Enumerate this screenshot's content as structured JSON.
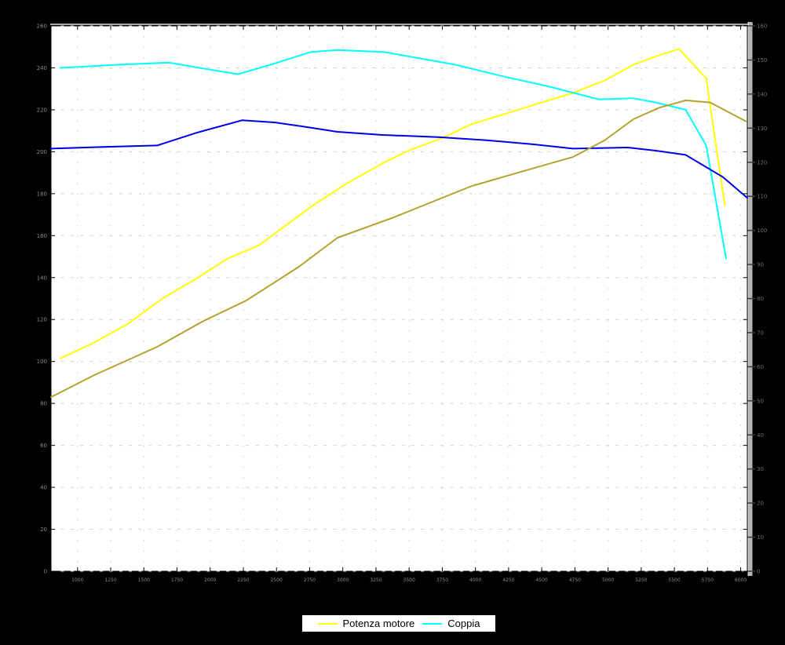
{
  "window": {
    "background": "#000000",
    "plot_background": "#ffffff",
    "grid_color": "#c8c8c8",
    "tick_label_color": "#8a8a8a",
    "title": ""
  },
  "chart_data": {
    "type": "line",
    "title": "",
    "xlabel": "",
    "ylabel": "",
    "grid": true,
    "legend_position": "bottom-center-outside",
    "x_axis": {
      "min": 800,
      "max": 6050,
      "ticks": [
        1000,
        1250,
        1500,
        1750,
        2000,
        2250,
        2500,
        2750,
        3000,
        3250,
        3500,
        3750,
        4000,
        4250,
        4500,
        4750,
        5000,
        5250,
        5500,
        5750,
        6000
      ]
    },
    "y_axis_left": {
      "min": 0,
      "max": 260,
      "ticks": [
        0,
        20,
        40,
        60,
        80,
        100,
        120,
        140,
        160,
        180,
        200,
        220,
        240,
        260
      ]
    },
    "y_axis_right": {
      "min": 0,
      "max": 160,
      "ticks": [
        0,
        10,
        20,
        30,
        40,
        50,
        60,
        70,
        80,
        90,
        100,
        110,
        120,
        130,
        140,
        150,
        160
      ]
    },
    "series": [
      {
        "name": "Potenza motore",
        "color": "#ffff00",
        "in_legend": true,
        "points": [
          [
            870,
            101.5
          ],
          [
            1125,
            109
          ],
          [
            1380,
            118
          ],
          [
            1640,
            130
          ],
          [
            1895,
            139.5
          ],
          [
            2130,
            149
          ],
          [
            2370,
            155.5
          ],
          [
            2765,
            174
          ],
          [
            3020,
            184.5
          ],
          [
            3315,
            195
          ],
          [
            3495,
            200.5
          ],
          [
            3750,
            206.5
          ],
          [
            3965,
            213
          ],
          [
            4500,
            223.5
          ],
          [
            4735,
            228
          ],
          [
            4975,
            234
          ],
          [
            5190,
            241.5
          ],
          [
            5360,
            245.5
          ],
          [
            5535,
            249
          ],
          [
            5740,
            235
          ],
          [
            5880,
            174.5
          ]
        ]
      },
      {
        "name": "Coppia",
        "color": "#00ffff",
        "in_legend": true,
        "points": [
          [
            870,
            240
          ],
          [
            1305,
            241.5
          ],
          [
            1690,
            242.5
          ],
          [
            1965,
            239.5
          ],
          [
            2210,
            237
          ],
          [
            2455,
            241.5
          ],
          [
            2755,
            247.5
          ],
          [
            2960,
            248.5
          ],
          [
            3315,
            247.5
          ],
          [
            3580,
            244.5
          ],
          [
            3850,
            241.5
          ],
          [
            4205,
            236
          ],
          [
            4560,
            231
          ],
          [
            4930,
            225
          ],
          [
            5190,
            225.5
          ],
          [
            5360,
            223.5
          ],
          [
            5585,
            220
          ],
          [
            5740,
            203
          ],
          [
            5890,
            149
          ]
        ]
      },
      {
        "name": "series-blue",
        "color": "#0000e6",
        "in_legend": false,
        "points": [
          [
            800,
            201.5
          ],
          [
            1305,
            202.5
          ],
          [
            1600,
            203
          ],
          [
            1895,
            209
          ],
          [
            2240,
            215
          ],
          [
            2485,
            214
          ],
          [
            2755,
            211.5
          ],
          [
            2960,
            209.5
          ],
          [
            3300,
            208
          ],
          [
            3720,
            207
          ],
          [
            4085,
            205.5
          ],
          [
            4440,
            203.5
          ],
          [
            4735,
            201.5
          ],
          [
            5150,
            202
          ],
          [
            5360,
            200.5
          ],
          [
            5585,
            198.5
          ],
          [
            5865,
            188
          ],
          [
            6050,
            178
          ]
        ]
      },
      {
        "name": "series-dark-yellow",
        "color": "#b3a32e",
        "in_legend": false,
        "points": [
          [
            800,
            83
          ],
          [
            1125,
            93.5
          ],
          [
            1390,
            101
          ],
          [
            1600,
            107
          ],
          [
            1955,
            119.5
          ],
          [
            2270,
            129
          ],
          [
            2665,
            145
          ],
          [
            2960,
            159
          ],
          [
            3375,
            168.5
          ],
          [
            3670,
            176
          ],
          [
            3965,
            183.5
          ],
          [
            4320,
            190
          ],
          [
            4735,
            197.5
          ],
          [
            4975,
            205.5
          ],
          [
            5190,
            215.5
          ],
          [
            5385,
            221
          ],
          [
            5585,
            224.5
          ],
          [
            5770,
            223.5
          ],
          [
            6040,
            214.5
          ]
        ]
      }
    ]
  }
}
